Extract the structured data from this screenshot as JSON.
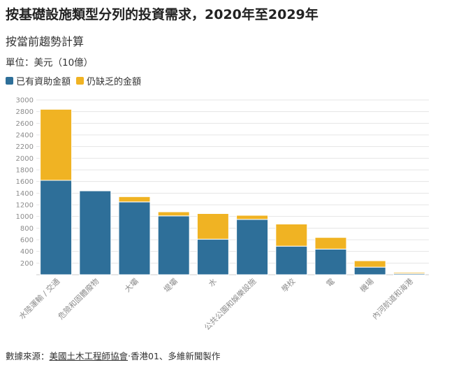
{
  "title": "按基礎設施類型分列的投資需求，2020年至2029年",
  "subtitle": "按當前趨勢計算",
  "unit": "單位：美元（10億）",
  "colors": {
    "funded": "#2e6f99",
    "gap": "#f0b323",
    "grid": "#e4e4e4",
    "tick": "#8c8c8c"
  },
  "legend": [
    {
      "label": "已有資助金額",
      "color": "#2e6f99"
    },
    {
      "label": "仍缺乏的金額",
      "color": "#f0b323"
    }
  ],
  "source": {
    "label": "數據來源：",
    "link": "美國土木工程師協會",
    "suffix": "‧香港01、多維新聞製作"
  },
  "chart_data": {
    "type": "bar",
    "stacked": true,
    "categories": [
      "水陸運輸 / 交通",
      "危險和固體廢物",
      "大壩",
      "堤壩",
      "水",
      "公共公園和娛樂設施",
      "學校",
      "電",
      "機場",
      "內河航道和海港"
    ],
    "series": [
      {
        "name": "已有資助金額",
        "values": [
          1620,
          1440,
          1250,
          1010,
          610,
          950,
          490,
          440,
          130,
          20
        ]
      },
      {
        "name": "仍缺乏的金額",
        "values": [
          1220,
          0,
          90,
          70,
          440,
          70,
          380,
          200,
          110,
          20
        ]
      }
    ],
    "ylim": [
      0,
      3000
    ],
    "yticks": [
      200,
      400,
      600,
      800,
      1000,
      1200,
      1400,
      1600,
      1800,
      2000,
      2200,
      2400,
      2600,
      2800,
      3000
    ],
    "grid": true,
    "legend_position": "top-left"
  }
}
